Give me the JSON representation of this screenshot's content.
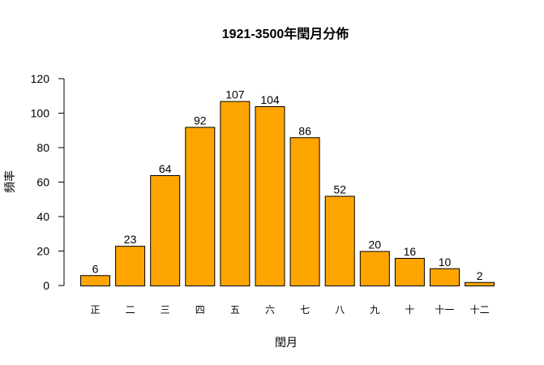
{
  "chart_data": {
    "type": "bar",
    "title": "1921-3500年閏月分佈",
    "xlabel": "閏月",
    "ylabel": "頻率",
    "categories": [
      "正",
      "二",
      "三",
      "四",
      "五",
      "六",
      "七",
      "八",
      "九",
      "十",
      "十一",
      "十二"
    ],
    "values": [
      6,
      23,
      64,
      92,
      107,
      104,
      86,
      52,
      20,
      16,
      10,
      2
    ],
    "ylim": [
      0,
      120
    ],
    "yticks": [
      0,
      20,
      40,
      60,
      80,
      100,
      120
    ],
    "grid": false,
    "legend": null,
    "bar_color": "#FFA500",
    "bar_border_color": "#000000",
    "data_labels": true
  }
}
